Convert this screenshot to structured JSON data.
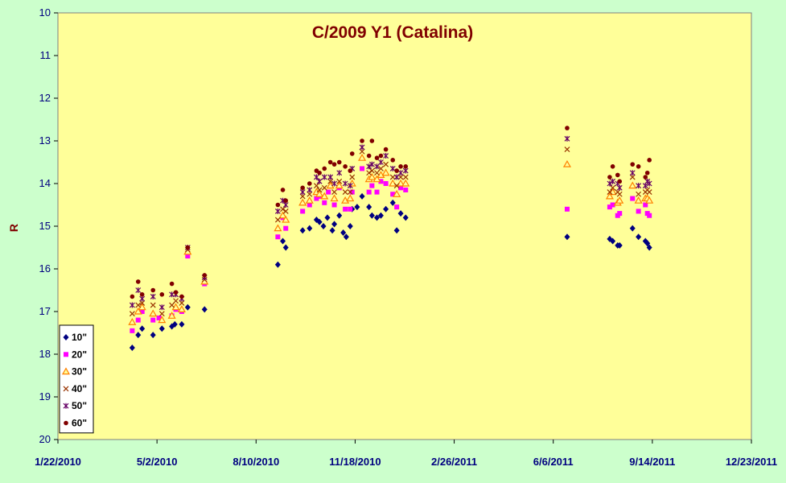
{
  "chart_data": {
    "type": "scatter",
    "title": "C/2009 Y1 (Catalina)",
    "xlabel": "",
    "ylabel": "R",
    "ylim": [
      10,
      20
    ],
    "y_inverted": true,
    "yticks": [
      10,
      11,
      12,
      13,
      14,
      15,
      16,
      17,
      18,
      19,
      20
    ],
    "xticks": [
      "1/22/2010",
      "5/2/2010",
      "8/10/2010",
      "11/18/2010",
      "2/26/2011",
      "6/6/2011",
      "9/14/2011",
      "12/23/2011"
    ],
    "xlim": [
      "1/22/2010",
      "12/23/2011"
    ],
    "legend_position": "bottom-left",
    "grid": false,
    "plot_background": "#ffff99",
    "page_background": "#ccffcc",
    "series": [
      {
        "name": "10\"",
        "marker": "diamond",
        "color": "#000080",
        "x": [
          "4/7/2010",
          "4/13/2010",
          "4/17/2010",
          "4/28/2010",
          "5/7/2010",
          "5/17/2010",
          "5/20/2010",
          "5/27/2010",
          "6/2/2010",
          "6/19/2010",
          "9/1/2010",
          "9/6/2010",
          "9/9/2010",
          "9/26/2010",
          "10/3/2010",
          "10/10/2010",
          "10/13/2010",
          "10/17/2010",
          "10/21/2010",
          "10/26/2010",
          "10/28/2010",
          "11/2/2010",
          "11/6/2010",
          "11/9/2010",
          "11/13/2010",
          "11/15/2010",
          "11/20/2010",
          "11/25/2010",
          "12/2/2010",
          "12/5/2010",
          "12/10/2010",
          "12/14/2010",
          "12/19/2010",
          "12/26/2010",
          "12/30/2010",
          "1/3/2011",
          "1/8/2011",
          "6/20/2011",
          "8/2/2011",
          "8/5/2011",
          "8/10/2011",
          "8/12/2011",
          "8/25/2011",
          "8/31/2011",
          "9/7/2011",
          "9/9/2011",
          "9/11/2011"
        ],
        "y": [
          17.85,
          17.55,
          17.4,
          17.55,
          17.4,
          17.35,
          17.3,
          17.3,
          16.9,
          16.95,
          15.9,
          15.35,
          15.5,
          15.1,
          15.05,
          14.85,
          14.9,
          15.0,
          14.8,
          15.1,
          14.95,
          14.75,
          15.15,
          15.25,
          15.0,
          14.6,
          14.55,
          14.3,
          14.55,
          14.75,
          14.8,
          14.75,
          14.6,
          14.45,
          15.1,
          14.7,
          14.8,
          15.25,
          15.3,
          15.35,
          15.45,
          15.45,
          15.05,
          15.25,
          15.35,
          15.4,
          15.5
        ]
      },
      {
        "name": "20\"",
        "marker": "square",
        "color": "#ff00ff",
        "x": [
          "4/7/2010",
          "4/13/2010",
          "4/17/2010",
          "4/28/2010",
          "5/4/2010",
          "5/17/2010",
          "5/21/2010",
          "5/27/2010",
          "6/2/2010",
          "6/19/2010",
          "9/1/2010",
          "9/6/2010",
          "9/9/2010",
          "9/26/2010",
          "10/3/2010",
          "10/10/2010",
          "10/13/2010",
          "10/18/2010",
          "10/22/2010",
          "10/28/2010",
          "11/2/2010",
          "11/8/2010",
          "11/13/2010",
          "11/15/2010",
          "11/25/2010",
          "12/2/2010",
          "12/5/2010",
          "12/10/2010",
          "12/14/2010",
          "12/19/2010",
          "12/26/2010",
          "12/30/2010",
          "1/3/2011",
          "1/8/2011",
          "6/20/2011",
          "8/2/2011",
          "8/5/2011",
          "8/10/2011",
          "8/12/2011",
          "8/25/2011",
          "8/31/2011",
          "9/7/2011",
          "9/9/2011",
          "9/11/2011"
        ],
        "y": [
          17.45,
          17.2,
          17.0,
          17.2,
          17.15,
          17.1,
          16.95,
          17.0,
          15.7,
          16.35,
          15.25,
          14.8,
          15.05,
          14.65,
          14.5,
          14.35,
          14.3,
          14.45,
          14.2,
          14.5,
          14.1,
          14.6,
          14.6,
          14.2,
          13.65,
          14.2,
          14.05,
          14.2,
          13.95,
          14.0,
          14.25,
          14.55,
          14.1,
          14.15,
          14.6,
          14.55,
          14.5,
          14.75,
          14.7,
          14.35,
          14.65,
          14.5,
          14.7,
          14.75
        ]
      },
      {
        "name": "30\"",
        "marker": "triangle",
        "color": "#ff8000",
        "x": [
          "4/7/2010",
          "4/13/2010",
          "4/17/2010",
          "4/28/2010",
          "5/7/2010",
          "5/17/2010",
          "5/21/2010",
          "5/27/2010",
          "6/2/2010",
          "6/19/2010",
          "9/1/2010",
          "9/6/2010",
          "9/9/2010",
          "9/26/2010",
          "10/3/2010",
          "10/10/2010",
          "10/13/2010",
          "10/18/2010",
          "10/24/2010",
          "10/28/2010",
          "11/2/2010",
          "11/8/2010",
          "11/13/2010",
          "11/15/2010",
          "11/25/2010",
          "12/2/2010",
          "12/5/2010",
          "12/10/2010",
          "12/14/2010",
          "12/19/2010",
          "12/26/2010",
          "12/30/2010",
          "1/3/2011",
          "1/8/2011",
          "6/20/2011",
          "8/2/2011",
          "8/5/2011",
          "8/10/2011",
          "8/12/2011",
          "8/25/2011",
          "8/31/2011",
          "9/7/2011",
          "9/9/2011",
          "9/11/2011"
        ],
        "y": [
          17.25,
          17.0,
          16.9,
          17.05,
          17.2,
          17.1,
          16.9,
          16.95,
          15.6,
          16.3,
          15.05,
          14.75,
          14.85,
          14.45,
          14.4,
          14.2,
          14.25,
          14.3,
          14.05,
          14.35,
          14.05,
          14.4,
          14.35,
          14.0,
          13.4,
          13.9,
          13.85,
          13.9,
          13.8,
          13.75,
          14.0,
          14.25,
          14.0,
          14.0,
          13.55,
          14.3,
          14.2,
          14.45,
          14.4,
          14.05,
          14.4,
          14.35,
          14.35,
          14.4
        ]
      },
      {
        "name": "40\"",
        "marker": "x",
        "color": "#993300",
        "x": [
          "4/7/2010",
          "4/13/2010",
          "4/17/2010",
          "4/28/2010",
          "5/7/2010",
          "5/17/2010",
          "5/21/2010",
          "5/27/2010",
          "6/2/2010",
          "6/19/2010",
          "9/1/2010",
          "9/6/2010",
          "9/9/2010",
          "9/26/2010",
          "10/3/2010",
          "10/10/2010",
          "10/13/2010",
          "10/18/2010",
          "10/24/2010",
          "10/28/2010",
          "11/2/2010",
          "11/8/2010",
          "11/13/2010",
          "11/15/2010",
          "11/25/2010",
          "12/2/2010",
          "12/5/2010",
          "12/10/2010",
          "12/14/2010",
          "12/19/2010",
          "12/26/2010",
          "12/30/2010",
          "1/3/2011",
          "1/8/2011",
          "6/20/2011",
          "8/2/2011",
          "8/5/2011",
          "8/10/2011",
          "8/12/2011",
          "8/25/2011",
          "8/31/2011",
          "9/7/2011",
          "9/9/2011",
          "9/11/2011"
        ],
        "y": [
          17.05,
          16.85,
          16.8,
          16.85,
          17.05,
          16.85,
          16.75,
          16.8,
          15.55,
          16.25,
          14.85,
          14.6,
          14.65,
          14.3,
          14.25,
          14.05,
          14.15,
          14.1,
          13.95,
          14.2,
          13.95,
          14.2,
          14.2,
          13.85,
          13.25,
          13.75,
          13.7,
          13.75,
          13.65,
          13.55,
          13.85,
          14.05,
          13.85,
          13.85,
          13.2,
          14.2,
          14.1,
          14.2,
          14.25,
          13.85,
          14.25,
          14.2,
          14.15,
          14.2
        ]
      },
      {
        "name": "50\"",
        "marker": "star",
        "color": "#660066",
        "x": [
          "4/7/2010",
          "4/13/2010",
          "4/17/2010",
          "4/28/2010",
          "5/7/2010",
          "5/17/2010",
          "5/21/2010",
          "5/27/2010",
          "6/2/2010",
          "6/19/2010",
          "9/1/2010",
          "9/6/2010",
          "9/9/2010",
          "9/26/2010",
          "10/3/2010",
          "10/10/2010",
          "10/13/2010",
          "10/18/2010",
          "10/24/2010",
          "10/28/2010",
          "11/2/2010",
          "11/8/2010",
          "11/13/2010",
          "11/15/2010",
          "11/25/2010",
          "12/2/2010",
          "12/5/2010",
          "12/10/2010",
          "12/14/2010",
          "12/19/2010",
          "12/26/2010",
          "12/30/2010",
          "1/3/2011",
          "1/8/2011",
          "6/20/2011",
          "8/2/2011",
          "8/5/2011",
          "8/10/2011",
          "8/12/2011",
          "8/25/2011",
          "8/31/2011",
          "9/7/2011",
          "9/9/2011",
          "9/11/2011"
        ],
        "y": [
          16.85,
          16.5,
          16.7,
          16.65,
          16.9,
          16.6,
          16.6,
          16.7,
          15.5,
          16.2,
          14.65,
          14.4,
          14.5,
          14.2,
          14.15,
          13.85,
          13.95,
          13.85,
          13.85,
          14.0,
          13.75,
          14.0,
          14.05,
          13.65,
          13.15,
          13.6,
          13.55,
          13.6,
          13.5,
          13.35,
          13.65,
          13.85,
          13.75,
          13.7,
          12.95,
          14.0,
          13.95,
          14.0,
          14.1,
          13.75,
          14.05,
          14.05,
          13.95,
          14.0
        ]
      },
      {
        "name": "60\"",
        "marker": "circle",
        "color": "#800000",
        "x": [
          "4/7/2010",
          "4/13/2010",
          "4/17/2010",
          "4/28/2010",
          "5/7/2010",
          "5/17/2010",
          "5/21/2010",
          "5/27/2010",
          "6/2/2010",
          "6/19/2010",
          "9/1/2010",
          "9/6/2010",
          "9/9/2010",
          "9/26/2010",
          "10/3/2010",
          "10/10/2010",
          "10/13/2010",
          "10/18/2010",
          "10/24/2010",
          "10/28/2010",
          "11/2/2010",
          "11/8/2010",
          "11/13/2010",
          "11/15/2010",
          "11/25/2010",
          "12/2/2010",
          "12/5/2010",
          "12/10/2010",
          "12/14/2010",
          "12/19/2010",
          "12/26/2010",
          "12/30/2010",
          "1/3/2011",
          "1/8/2011",
          "6/20/2011",
          "8/2/2011",
          "8/5/2011",
          "8/10/2011",
          "8/12/2011",
          "8/25/2011",
          "8/31/2011",
          "9/7/2011",
          "9/9/2011",
          "9/11/2011"
        ],
        "y": [
          16.65,
          16.3,
          16.6,
          16.5,
          16.6,
          16.35,
          16.55,
          16.65,
          15.5,
          16.15,
          14.5,
          14.15,
          14.4,
          14.1,
          14.0,
          13.7,
          13.75,
          13.65,
          13.5,
          13.55,
          13.5,
          13.6,
          13.7,
          13.3,
          13.0,
          13.35,
          13.0,
          13.4,
          13.35,
          13.2,
          13.45,
          13.7,
          13.6,
          13.6,
          12.7,
          13.85,
          13.6,
          13.8,
          13.95,
          13.55,
          13.6,
          13.85,
          13.75,
          13.45
        ]
      }
    ]
  }
}
